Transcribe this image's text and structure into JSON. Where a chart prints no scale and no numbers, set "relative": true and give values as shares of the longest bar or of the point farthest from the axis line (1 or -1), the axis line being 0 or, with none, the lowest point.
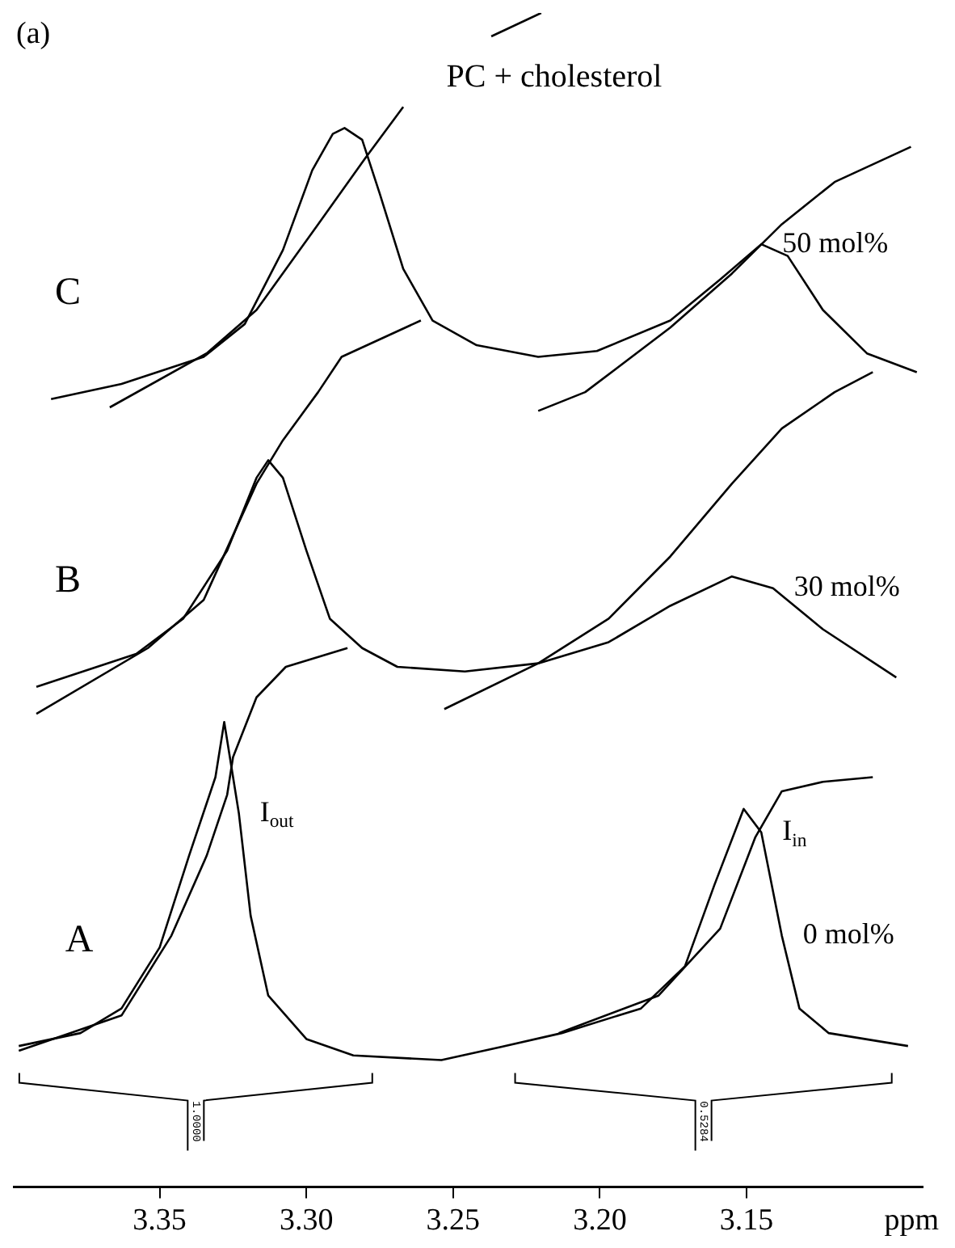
{
  "chart_data": {
    "type": "line",
    "title": "PC + cholesterol",
    "xlabel": "ppm",
    "relative": true,
    "marker": "none",
    "legend": false,
    "grid": false,
    "xlim": [
      3.4,
      3.09
    ],
    "xticks": [
      {
        "value": 3.35,
        "label": "3.35"
      },
      {
        "value": 3.3,
        "label": "3.30"
      },
      {
        "value": 3.25,
        "label": "3.25"
      },
      {
        "value": 3.2,
        "label": "3.20"
      },
      {
        "value": 3.15,
        "label": "3.15"
      }
    ],
    "series": [
      {
        "name": "C",
        "color": "#000000",
        "x": [
          3.387,
          3.363,
          3.335,
          3.321,
          3.308,
          3.298,
          3.291,
          3.287,
          3.281,
          3.275,
          3.267,
          3.257,
          3.242,
          3.221,
          3.201,
          3.176,
          3.159,
          3.145,
          3.136,
          3.124,
          3.109,
          3.092
        ],
        "values": [
          0.671,
          0.684,
          0.707,
          0.735,
          0.798,
          0.866,
          0.897,
          0.902,
          0.892,
          0.846,
          0.782,
          0.738,
          0.717,
          0.707,
          0.712,
          0.738,
          0.773,
          0.803,
          0.793,
          0.747,
          0.71,
          0.694
        ]
      },
      {
        "color": "#000000",
        "x": [
          3.367,
          3.334,
          3.317,
          3.296,
          3.28,
          3.267
        ],
        "values": [
          0.664,
          0.71,
          0.747,
          0.82,
          0.876,
          0.92
        ]
      },
      {
        "color": "#000000",
        "x": [
          3.237,
          3.22
        ],
        "values": [
          0.98,
          1.0
        ]
      },
      {
        "color": "#000000",
        "x": [
          3.221,
          3.205,
          3.176,
          3.155,
          3.138,
          3.12,
          3.094
        ],
        "values": [
          0.661,
          0.677,
          0.732,
          0.778,
          0.82,
          0.856,
          0.886
        ]
      },
      {
        "name": "B",
        "color": "#000000",
        "x": [
          3.392,
          3.358,
          3.342,
          3.327,
          3.317,
          3.313,
          3.308,
          3.3,
          3.292,
          3.281,
          3.269,
          3.246,
          3.221,
          3.197,
          3.176,
          3.155,
          3.141,
          3.124,
          3.099
        ],
        "values": [
          0.426,
          0.454,
          0.484,
          0.542,
          0.604,
          0.619,
          0.604,
          0.542,
          0.484,
          0.459,
          0.443,
          0.439,
          0.446,
          0.464,
          0.495,
          0.52,
          0.51,
          0.475,
          0.434
        ]
      },
      {
        "color": "#000000",
        "x": [
          3.392,
          3.354,
          3.335,
          3.317,
          3.308,
          3.296,
          3.288,
          3.261
        ],
        "values": [
          0.403,
          0.459,
          0.5,
          0.599,
          0.636,
          0.677,
          0.707,
          0.738
        ]
      },
      {
        "color": "#000000",
        "x": [
          3.253,
          3.221,
          3.197,
          3.176,
          3.155,
          3.138,
          3.12,
          3.107
        ],
        "values": [
          0.407,
          0.446,
          0.484,
          0.537,
          0.599,
          0.646,
          0.677,
          0.694
        ]
      },
      {
        "name": "A",
        "color": "#000000",
        "x": [
          3.398,
          3.377,
          3.363,
          3.35,
          3.34,
          3.331,
          3.328,
          3.323,
          3.319,
          3.313,
          3.3,
          3.284,
          3.254,
          3.234,
          3.213,
          3.186,
          3.171,
          3.161,
          3.151,
          3.145,
          3.138,
          3.132,
          3.122,
          3.095
        ],
        "values": [
          0.12,
          0.131,
          0.152,
          0.204,
          0.282,
          0.349,
          0.396,
          0.318,
          0.231,
          0.163,
          0.126,
          0.112,
          0.108,
          0.119,
          0.131,
          0.152,
          0.188,
          0.257,
          0.322,
          0.302,
          0.214,
          0.152,
          0.131,
          0.12
        ]
      },
      {
        "color": "#000000",
        "x": [
          3.398,
          3.363,
          3.346,
          3.334,
          3.327,
          3.325,
          3.317,
          3.307,
          3.286
        ],
        "values": [
          0.116,
          0.146,
          0.214,
          0.282,
          0.334,
          0.366,
          0.417,
          0.443,
          0.459
        ]
      },
      {
        "color": "#000000",
        "x": [
          3.214,
          3.18,
          3.159,
          3.147,
          3.138,
          3.124,
          3.107
        ],
        "values": [
          0.131,
          0.163,
          0.22,
          0.298,
          0.337,
          0.345,
          0.349
        ]
      }
    ],
    "annotations": [
      "(a)",
      "1.0000",
      "0.5284",
      {
        "text": "50 mol%",
        "x": 3.145,
        "y": 0.803
      },
      {
        "text": "30 mol%",
        "x": 3.141,
        "y": 0.51
      },
      {
        "text": "0 mol%",
        "x": 3.138,
        "y": 0.214
      },
      {
        "text": "I$_{out}$",
        "x": 3.323,
        "y": 0.318
      },
      {
        "text": "I$_{in}$",
        "x": 3.145,
        "y": 0.302
      }
    ]
  }
}
